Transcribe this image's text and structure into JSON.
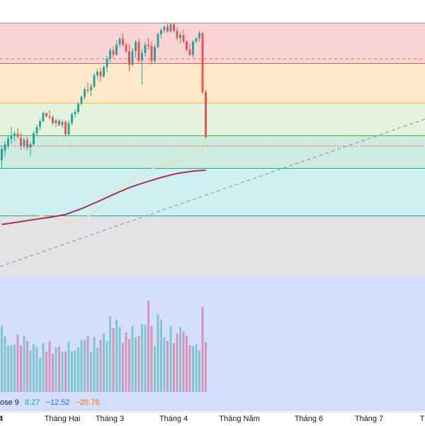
{
  "colors": {
    "up": "#26a69a",
    "down": "#ef5350",
    "volume_up": "#7fc6cf",
    "volume_down": "#d795b9",
    "ma_long": "#a83252",
    "ma_short": "#e8e29a",
    "trendline": "#8a8e99",
    "legend_value1": "#26a69a",
    "legend_value2": "#2962ff",
    "legend_value3": "#ff6d00",
    "zones": [
      "#fcd4d6",
      "#ffe9c9",
      "#e3f3dc",
      "#cdebdf",
      "#cff0f3",
      "#e3e3e6",
      "#d4dffe"
    ],
    "zone_lines": [
      "#8a8e99",
      "#ef5350",
      "#f2c04c",
      "#4caf50",
      "#26a69a",
      "#26a69a",
      "#9575cd"
    ]
  },
  "chart_data": {
    "type": "candlestick",
    "price_range": [
      0,
      100
    ],
    "fib_levels": [
      100,
      84.2,
      68.3,
      55.5,
      42.7,
      24.1,
      0
    ],
    "candles": [
      [
        45.8,
        51.7,
        42.8,
        50.3
      ],
      [
        49.5,
        53.4,
        47.2,
        52.0
      ],
      [
        51.4,
        55.7,
        50.2,
        54.3
      ],
      [
        54.2,
        58.9,
        52.2,
        55.6
      ],
      [
        55.6,
        57.3,
        53.1,
        56.3
      ],
      [
        56.3,
        58.4,
        54.3,
        55.1
      ],
      [
        54.6,
        56.5,
        49.9,
        51.4
      ],
      [
        51.4,
        54.7,
        50.1,
        53.8
      ],
      [
        53.8,
        55.0,
        49.6,
        50.8
      ],
      [
        50.8,
        53.1,
        47.6,
        52.1
      ],
      [
        52.1,
        57.3,
        51.3,
        56.4
      ],
      [
        56.4,
        60.0,
        55.3,
        58.9
      ],
      [
        58.9,
        62.1,
        57.6,
        61.2
      ],
      [
        61.2,
        65.0,
        60.8,
        64.4
      ],
      [
        64.4,
        64.5,
        62.7,
        63.1
      ],
      [
        63.1,
        65.5,
        61.9,
        62.7
      ],
      [
        62.7,
        63.5,
        59.6,
        60.4
      ],
      [
        60.4,
        62.1,
        58.8,
        61.5
      ],
      [
        61.5,
        62.1,
        59.1,
        59.6
      ],
      [
        59.6,
        61.8,
        58.4,
        60.9
      ],
      [
        60.9,
        61.6,
        55.2,
        56.0
      ],
      [
        56.0,
        61.5,
        55.3,
        60.4
      ],
      [
        60.4,
        64.5,
        59.6,
        63.9
      ],
      [
        63.9,
        65.8,
        62.6,
        64.8
      ],
      [
        64.8,
        68.7,
        63.9,
        68.0
      ],
      [
        68.0,
        71.3,
        67.4,
        70.8
      ],
      [
        70.8,
        74.7,
        69.7,
        73.7
      ],
      [
        73.7,
        76.6,
        72.2,
        73.3
      ],
      [
        73.3,
        76.0,
        70.9,
        74.8
      ],
      [
        74.8,
        80.1,
        74.2,
        79.3
      ],
      [
        79.3,
        81.9,
        77.8,
        80.7
      ],
      [
        80.7,
        82.4,
        76.9,
        78.8
      ],
      [
        78.8,
        83.2,
        78.1,
        82.5
      ],
      [
        82.5,
        86.8,
        80.5,
        85.8
      ],
      [
        85.8,
        90.0,
        84.3,
        89.1
      ],
      [
        89.1,
        90.7,
        86.1,
        87.4
      ],
      [
        87.4,
        92.9,
        86.9,
        91.3
      ],
      [
        91.3,
        94.4,
        90.3,
        93.6
      ],
      [
        93.6,
        95.8,
        90.7,
        91.4
      ],
      [
        91.4,
        92.1,
        88.1,
        88.7
      ],
      [
        88.7,
        91.6,
        80.9,
        83.4
      ],
      [
        83.4,
        89.9,
        82.9,
        88.8
      ],
      [
        88.8,
        93.3,
        86.2,
        92.5
      ],
      [
        92.5,
        93.6,
        84.3,
        85.0
      ],
      [
        85.0,
        89.6,
        75.6,
        88.0
      ],
      [
        88.0,
        92.4,
        86.6,
        91.3
      ],
      [
        91.3,
        93.9,
        89.4,
        90.8
      ],
      [
        90.8,
        92.6,
        83.6,
        84.9
      ],
      [
        84.9,
        91.4,
        84.0,
        90.4
      ],
      [
        90.4,
        96.1,
        89.9,
        95.5
      ],
      [
        95.5,
        97.6,
        93.7,
        97.1
      ],
      [
        97.1,
        98.9,
        95.9,
        98.4
      ],
      [
        98.4,
        99.6,
        96.1,
        96.6
      ],
      [
        96.6,
        100.0,
        96.0,
        99.3
      ],
      [
        99.3,
        99.6,
        96.1,
        96.8
      ],
      [
        96.8,
        98.1,
        93.0,
        93.9
      ],
      [
        93.9,
        96.4,
        91.9,
        95.2
      ],
      [
        95.2,
        97.3,
        91.9,
        92.6
      ],
      [
        92.6,
        93.1,
        88.7,
        89.4
      ],
      [
        89.4,
        91.7,
        86.9,
        87.3
      ],
      [
        87.3,
        93.1,
        86.2,
        92.6
      ],
      [
        92.6,
        94.3,
        91.8,
        93.8
      ],
      [
        93.8,
        96.7,
        92.4,
        95.9
      ],
      [
        95.9,
        96.4,
        72.0,
        72.6
      ],
      [
        72.6,
        73.6,
        54.3,
        55.0
      ]
    ],
    "volumes": [
      0.62,
      0.52,
      0.44,
      0.44,
      0.45,
      0.54,
      0.44,
      0.53,
      0.48,
      0.39,
      0.45,
      0.42,
      0.32,
      0.46,
      0.38,
      0.48,
      0.36,
      0.42,
      0.43,
      0.38,
      0.38,
      0.47,
      0.38,
      0.39,
      0.42,
      0.49,
      0.49,
      0.53,
      0.38,
      0.52,
      0.42,
      0.49,
      0.55,
      0.48,
      0.71,
      0.6,
      0.68,
      0.61,
      0.46,
      0.56,
      0.5,
      0.62,
      0.51,
      0.53,
      0.64,
      0.63,
      0.86,
      0.62,
      0.43,
      0.73,
      0.68,
      0.51,
      0.48,
      0.62,
      0.46,
      0.55,
      0.61,
      0.57,
      0.53,
      0.44,
      0.43,
      0.45,
      0.39,
      0.8,
      0.47
    ],
    "ma_long": [
      [
        0,
        20.5
      ],
      [
        5,
        21.4
      ],
      [
        10,
        22.4
      ],
      [
        15,
        23.3
      ],
      [
        20,
        24.4
      ],
      [
        25,
        26.7
      ],
      [
        30,
        29.4
      ],
      [
        35,
        32.3
      ],
      [
        40,
        35.0
      ],
      [
        45,
        37.1
      ],
      [
        50,
        39.0
      ],
      [
        55,
        40.6
      ],
      [
        60,
        41.5
      ],
      [
        64,
        41.9
      ]
    ],
    "ma_short": [
      [
        0,
        26.5
      ],
      [
        5,
        25.1
      ],
      [
        10,
        24.4
      ],
      [
        15,
        23.3
      ],
      [
        20,
        21.5
      ],
      [
        25,
        22.2
      ],
      [
        30,
        26.0
      ],
      [
        35,
        32.0
      ],
      [
        40,
        37.6
      ],
      [
        45,
        41.5
      ],
      [
        50,
        43.7
      ],
      [
        55,
        45.3
      ],
      [
        60,
        48.0
      ],
      [
        64,
        52.3
      ]
    ]
  },
  "legend": {
    "prefix": "ose 9",
    "value1": "8.27",
    "value2": "−12.52",
    "value3": "−20.78"
  },
  "xaxis": {
    "labels": [
      "4",
      "Tháng Hai",
      "Tháng 3",
      "Tháng 4",
      "Tháng Năm",
      "Tháng 6",
      "Tháng 7",
      "T"
    ]
  }
}
